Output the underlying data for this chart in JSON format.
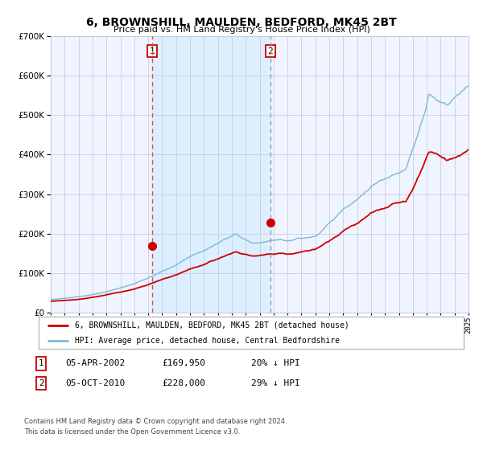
{
  "title": "6, BROWNSHILL, MAULDEN, BEDFORD, MK45 2BT",
  "subtitle": "Price paid vs. HM Land Registry's House Price Index (HPI)",
  "legend_line1": "6, BROWNSHILL, MAULDEN, BEDFORD, MK45 2BT (detached house)",
  "legend_line2": "HPI: Average price, detached house, Central Bedfordshire",
  "annotation1_label": "1",
  "annotation1_date": "05-APR-2002",
  "annotation1_price": "£169,950",
  "annotation1_hpi": "20% ↓ HPI",
  "annotation2_label": "2",
  "annotation2_date": "05-OCT-2010",
  "annotation2_price": "£228,000",
  "annotation2_hpi": "29% ↓ HPI",
  "footnote1": "Contains HM Land Registry data © Crown copyright and database right 2024.",
  "footnote2": "This data is licensed under the Open Government Licence v3.0.",
  "hpi_color": "#7ab8d9",
  "price_color": "#cc0000",
  "shade_color": "#ddeeff",
  "dashed_line1_color": "#ee4444",
  "dashed_line2_color": "#9999bb",
  "background_color": "#f0f4ff",
  "grid_color": "#c8cce0",
  "x_start_year": 1995,
  "x_end_year": 2025,
  "ylim_min": 0,
  "ylim_max": 700000,
  "purchase1_year": 2002.27,
  "purchase1_value": 169950,
  "purchase2_year": 2010.77,
  "purchase2_value": 228000
}
